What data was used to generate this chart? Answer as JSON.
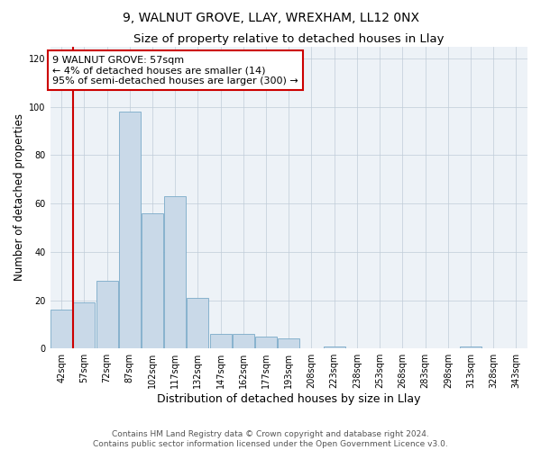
{
  "title": "9, WALNUT GROVE, LLAY, WREXHAM, LL12 0NX",
  "subtitle": "Size of property relative to detached houses in Llay",
  "xlabel": "Distribution of detached houses by size in Llay",
  "ylabel": "Number of detached properties",
  "bins": [
    "42sqm",
    "57sqm",
    "72sqm",
    "87sqm",
    "102sqm",
    "117sqm",
    "132sqm",
    "147sqm",
    "162sqm",
    "177sqm",
    "193sqm",
    "208sqm",
    "223sqm",
    "238sqm",
    "253sqm",
    "268sqm",
    "283sqm",
    "298sqm",
    "313sqm",
    "328sqm",
    "343sqm"
  ],
  "values": [
    16,
    19,
    28,
    98,
    56,
    63,
    21,
    6,
    6,
    5,
    4,
    0,
    1,
    0,
    0,
    0,
    0,
    0,
    1,
    0,
    0
  ],
  "bar_color": "#c9d9e8",
  "bar_edge_color": "#7aaac8",
  "highlight_bin_index": 1,
  "highlight_color": "#cc0000",
  "annotation_box_text": "9 WALNUT GROVE: 57sqm\n← 4% of detached houses are smaller (14)\n95% of semi-detached houses are larger (300) →",
  "annotation_box_color": "#ffffff",
  "annotation_box_edge_color": "#cc0000",
  "ylim": [
    0,
    125
  ],
  "yticks": [
    0,
    20,
    40,
    60,
    80,
    100,
    120
  ],
  "footer_line1": "Contains HM Land Registry data © Crown copyright and database right 2024.",
  "footer_line2": "Contains public sector information licensed under the Open Government Licence v3.0.",
  "title_fontsize": 10,
  "subtitle_fontsize": 9.5,
  "axis_label_fontsize": 8.5,
  "xlabel_fontsize": 9,
  "tick_fontsize": 7,
  "footer_fontsize": 6.5,
  "annotation_fontsize": 8,
  "background_color": "#edf2f7"
}
